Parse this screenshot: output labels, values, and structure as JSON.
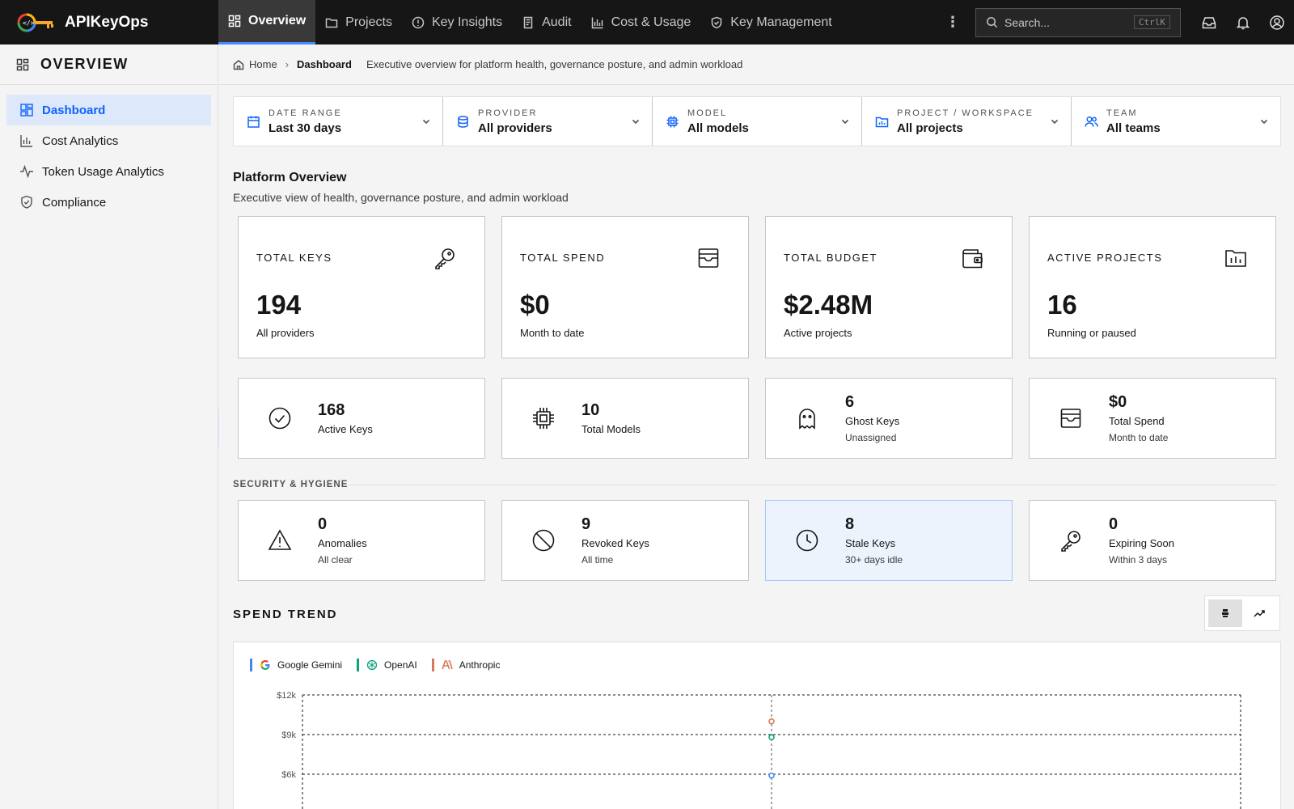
{
  "app": {
    "name": "APIKeyOps"
  },
  "nav": {
    "items": [
      {
        "label": "Overview",
        "icon": "dashboard-icon",
        "active": true
      },
      {
        "label": "Projects",
        "icon": "folder-icon"
      },
      {
        "label": "Key Insights",
        "icon": "alert-circle-icon"
      },
      {
        "label": "Audit",
        "icon": "audit-log-icon"
      },
      {
        "label": "Cost & Usage",
        "icon": "bar-chart-icon"
      },
      {
        "label": "Key Management",
        "icon": "shield-icon"
      }
    ]
  },
  "search": {
    "placeholder": "Search...",
    "shortcut": "CtrlK"
  },
  "sidebar": {
    "title": "OVERVIEW",
    "items": [
      {
        "label": "Dashboard",
        "active": true
      },
      {
        "label": "Cost Analytics"
      },
      {
        "label": "Token Usage Analytics"
      },
      {
        "label": "Compliance"
      }
    ]
  },
  "breadcrumb": {
    "home": "Home",
    "current": "Dashboard",
    "description": "Executive overview for platform health, governance posture, and admin workload"
  },
  "filters": [
    {
      "label": "DATE RANGE",
      "value": "Last 30 days"
    },
    {
      "label": "PROVIDER",
      "value": "All providers"
    },
    {
      "label": "MODEL",
      "value": "All models"
    },
    {
      "label": "PROJECT / WORKSPACE",
      "value": "All projects"
    },
    {
      "label": "TEAM",
      "value": "All teams"
    }
  ],
  "overview": {
    "title": "Platform Overview",
    "subtitle": "Executive view of health, governance posture, and admin workload"
  },
  "kpis": [
    {
      "label": "TOTAL KEYS",
      "value": "194",
      "sub": "All providers",
      "icon": "key-icon"
    },
    {
      "label": "TOTAL SPEND",
      "value": "$0",
      "sub": "Month to date",
      "icon": "receipt-icon"
    },
    {
      "label": "TOTAL BUDGET",
      "value": "$2.48M",
      "sub": "Active projects",
      "icon": "wallet-icon"
    },
    {
      "label": "ACTIVE PROJECTS",
      "value": "16",
      "sub": "Running or paused",
      "icon": "folder-chart-icon"
    }
  ],
  "stats": [
    {
      "value": "168",
      "label": "Active Keys",
      "sub": "",
      "icon": "check-circle-icon"
    },
    {
      "value": "10",
      "label": "Total Models",
      "sub": "",
      "icon": "chip-icon"
    },
    {
      "value": "6",
      "label": "Ghost Keys",
      "sub": "Unassigned",
      "icon": "ghost-icon"
    },
    {
      "value": "$0",
      "label": "Total Spend",
      "sub": "Month to date",
      "icon": "receipt-icon"
    }
  ],
  "security": {
    "title": "SECURITY & HYGIENE",
    "cards": [
      {
        "value": "0",
        "label": "Anomalies",
        "sub": "All clear",
        "icon": "warning-icon"
      },
      {
        "value": "9",
        "label": "Revoked Keys",
        "sub": "All time",
        "icon": "block-icon"
      },
      {
        "value": "8",
        "label": "Stale Keys",
        "sub": "30+ days idle",
        "icon": "clock-icon",
        "highlighted": true
      },
      {
        "value": "0",
        "label": "Expiring Soon",
        "sub": "Within 3 days",
        "icon": "key-icon"
      }
    ]
  },
  "trend": {
    "title": "SPEND TREND",
    "view": "bar"
  },
  "colors": {
    "accent": "#0f62fe",
    "gemini": "#4285f4",
    "openai": "#10a37f",
    "anthropic": "#d97757"
  },
  "chart_data": {
    "type": "line",
    "ylim": [
      0,
      12000
    ],
    "yticks": [
      "$12k",
      "$9k",
      "$6k"
    ],
    "ytick_values": [
      12000,
      9000,
      6000
    ],
    "series": [
      {
        "name": "Google Gemini",
        "color": "#4285f4",
        "values": [
          5900
        ]
      },
      {
        "name": "OpenAI",
        "color": "#10a37f",
        "values": [
          8800
        ]
      },
      {
        "name": "Anthropic",
        "color": "#d97757",
        "values": [
          10000
        ]
      }
    ]
  }
}
